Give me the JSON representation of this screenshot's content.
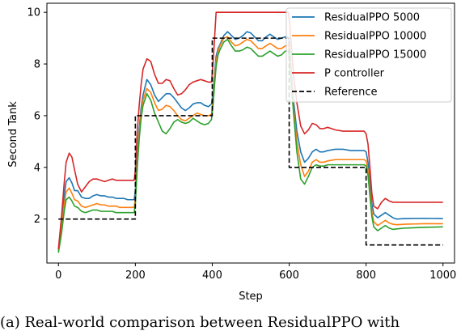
{
  "caption": "(a) Real-world comparison between ResidualPPO with",
  "chart_data": {
    "type": "line",
    "xlabel": "Step",
    "ylabel": "Second Tank",
    "xlim": [
      -30,
      1030
    ],
    "ylim": [
      0.3,
      10.35
    ],
    "xticks": [
      0,
      200,
      400,
      600,
      800,
      1000
    ],
    "yticks": [
      2,
      4,
      6,
      8,
      10
    ],
    "legend_position": "upper-right",
    "series": [
      {
        "name": "ResidualPPO 5000",
        "color": "#1f77b4",
        "x": [
          0,
          8,
          15,
          20,
          28,
          35,
          42,
          50,
          60,
          70,
          80,
          90,
          100,
          110,
          120,
          130,
          140,
          150,
          160,
          170,
          180,
          190,
          197,
          200,
          205,
          210,
          215,
          220,
          230,
          240,
          250,
          260,
          270,
          280,
          290,
          300,
          310,
          320,
          330,
          340,
          350,
          360,
          370,
          380,
          390,
          398,
          402,
          406,
          410,
          415,
          420,
          430,
          440,
          450,
          460,
          470,
          480,
          490,
          500,
          510,
          520,
          530,
          540,
          550,
          560,
          570,
          580,
          590,
          598,
          602,
          606,
          612,
          620,
          630,
          640,
          650,
          660,
          670,
          680,
          690,
          700,
          720,
          740,
          760,
          780,
          795,
          800,
          805,
          810,
          815,
          820,
          830,
          840,
          850,
          860,
          870,
          880,
          900,
          950,
          1000
        ],
        "y": [
          0.8,
          1.8,
          2.9,
          3.45,
          3.6,
          3.4,
          3.1,
          3.1,
          2.85,
          2.8,
          2.8,
          2.9,
          2.95,
          2.9,
          2.9,
          2.85,
          2.85,
          2.8,
          2.8,
          2.8,
          2.75,
          2.75,
          2.75,
          3.1,
          4.5,
          5.5,
          6.3,
          6.8,
          7.4,
          7.2,
          6.8,
          6.55,
          6.7,
          6.85,
          6.85,
          6.7,
          6.5,
          6.3,
          6.2,
          6.3,
          6.45,
          6.5,
          6.5,
          6.4,
          6.35,
          6.45,
          6.9,
          7.6,
          8.3,
          8.6,
          8.75,
          9.1,
          9.25,
          9.1,
          8.95,
          9.0,
          9.1,
          9.25,
          9.2,
          9.05,
          8.9,
          8.9,
          9.05,
          9.15,
          9.05,
          8.95,
          9.0,
          9.05,
          9.05,
          8.5,
          7.6,
          6.5,
          5.4,
          4.6,
          4.2,
          4.35,
          4.6,
          4.7,
          4.6,
          4.6,
          4.65,
          4.7,
          4.7,
          4.65,
          4.65,
          4.65,
          4.6,
          4.2,
          3.4,
          2.6,
          2.2,
          2.05,
          2.15,
          2.25,
          2.15,
          2.05,
          2.0,
          2.02,
          2.03,
          2.02
        ]
      },
      {
        "name": "ResidualPPO 10000",
        "color": "#ff7f0e",
        "x": [
          0,
          8,
          15,
          20,
          28,
          35,
          42,
          50,
          60,
          70,
          80,
          90,
          100,
          110,
          120,
          130,
          140,
          150,
          160,
          170,
          180,
          190,
          197,
          200,
          205,
          210,
          215,
          220,
          230,
          240,
          250,
          260,
          270,
          280,
          290,
          300,
          310,
          320,
          330,
          340,
          350,
          360,
          370,
          380,
          390,
          398,
          402,
          406,
          410,
          415,
          420,
          430,
          440,
          450,
          460,
          470,
          480,
          490,
          500,
          510,
          520,
          530,
          540,
          550,
          560,
          570,
          580,
          590,
          598,
          602,
          606,
          612,
          620,
          630,
          640,
          650,
          660,
          670,
          680,
          690,
          700,
          720,
          740,
          760,
          780,
          795,
          800,
          805,
          810,
          815,
          820,
          830,
          840,
          850,
          860,
          870,
          880,
          900,
          950,
          1000
        ],
        "y": [
          0.75,
          1.6,
          2.55,
          3.05,
          3.2,
          3.0,
          2.75,
          2.7,
          2.5,
          2.45,
          2.5,
          2.55,
          2.6,
          2.55,
          2.55,
          2.5,
          2.5,
          2.5,
          2.45,
          2.45,
          2.45,
          2.45,
          2.45,
          2.8,
          4.2,
          5.3,
          6.1,
          6.6,
          7.05,
          6.9,
          6.5,
          6.2,
          6.25,
          6.4,
          6.35,
          6.2,
          6.0,
          5.85,
          5.8,
          5.9,
          6.0,
          6.1,
          6.05,
          6.0,
          6.0,
          6.05,
          6.6,
          7.4,
          8.1,
          8.5,
          8.7,
          9.0,
          9.05,
          8.85,
          8.7,
          8.75,
          8.85,
          8.95,
          8.9,
          8.75,
          8.6,
          8.6,
          8.7,
          8.8,
          8.7,
          8.6,
          8.6,
          8.7,
          8.7,
          8.2,
          7.3,
          6.2,
          5.0,
          4.1,
          3.65,
          3.85,
          4.2,
          4.3,
          4.2,
          4.2,
          4.25,
          4.3,
          4.3,
          4.3,
          4.3,
          4.3,
          4.25,
          3.9,
          3.1,
          2.3,
          1.9,
          1.75,
          1.85,
          1.95,
          1.85,
          1.8,
          1.78,
          1.8,
          1.82,
          1.82
        ]
      },
      {
        "name": "ResidualPPO 15000",
        "color": "#2ca02c",
        "x": [
          0,
          8,
          15,
          20,
          28,
          35,
          42,
          50,
          60,
          70,
          80,
          90,
          100,
          110,
          120,
          130,
          140,
          150,
          160,
          170,
          180,
          190,
          197,
          200,
          205,
          210,
          215,
          220,
          230,
          240,
          250,
          260,
          270,
          280,
          290,
          300,
          310,
          320,
          330,
          340,
          350,
          360,
          370,
          380,
          390,
          398,
          402,
          406,
          410,
          415,
          420,
          430,
          440,
          450,
          460,
          470,
          480,
          490,
          500,
          510,
          520,
          530,
          540,
          550,
          560,
          570,
          580,
          590,
          598,
          602,
          606,
          612,
          620,
          630,
          640,
          650,
          660,
          670,
          680,
          690,
          700,
          720,
          740,
          760,
          780,
          795,
          800,
          805,
          810,
          815,
          820,
          830,
          840,
          850,
          860,
          870,
          880,
          900,
          950,
          1000
        ],
        "y": [
          0.7,
          1.45,
          2.3,
          2.75,
          2.85,
          2.7,
          2.5,
          2.45,
          2.3,
          2.25,
          2.3,
          2.35,
          2.35,
          2.3,
          2.3,
          2.3,
          2.3,
          2.25,
          2.25,
          2.25,
          2.25,
          2.25,
          2.25,
          2.6,
          4.0,
          5.1,
          5.9,
          6.4,
          6.85,
          6.6,
          6.1,
          5.75,
          5.4,
          5.3,
          5.5,
          5.75,
          5.85,
          5.75,
          5.7,
          5.75,
          5.9,
          5.8,
          5.7,
          5.65,
          5.7,
          5.85,
          6.4,
          7.2,
          7.9,
          8.35,
          8.55,
          8.85,
          8.95,
          8.7,
          8.5,
          8.5,
          8.55,
          8.65,
          8.6,
          8.45,
          8.3,
          8.3,
          8.4,
          8.5,
          8.4,
          8.3,
          8.35,
          8.5,
          8.5,
          8.0,
          7.1,
          6.0,
          4.6,
          3.55,
          3.35,
          3.65,
          4.0,
          4.1,
          4.05,
          4.05,
          4.1,
          4.1,
          4.1,
          4.1,
          4.1,
          4.1,
          4.05,
          3.7,
          2.9,
          2.1,
          1.7,
          1.55,
          1.65,
          1.75,
          1.65,
          1.6,
          1.62,
          1.65,
          1.68,
          1.7
        ]
      },
      {
        "name": "P controller",
        "color": "#d62728",
        "x": [
          0,
          8,
          15,
          20,
          28,
          35,
          42,
          50,
          60,
          70,
          80,
          90,
          100,
          110,
          120,
          130,
          140,
          150,
          160,
          170,
          180,
          190,
          197,
          200,
          205,
          210,
          215,
          220,
          230,
          240,
          250,
          260,
          270,
          280,
          290,
          300,
          310,
          320,
          330,
          340,
          350,
          360,
          370,
          380,
          390,
          398,
          402,
          406,
          410,
          415,
          420,
          430,
          440,
          450,
          460,
          470,
          480,
          490,
          500,
          510,
          520,
          530,
          540,
          550,
          560,
          570,
          580,
          590,
          598,
          602,
          606,
          612,
          620,
          630,
          640,
          650,
          660,
          670,
          680,
          690,
          700,
          720,
          740,
          760,
          780,
          795,
          800,
          805,
          810,
          815,
          820,
          830,
          840,
          850,
          860,
          870,
          880,
          900,
          950,
          1000
        ],
        "y": [
          0.85,
          2.1,
          3.4,
          4.2,
          4.55,
          4.4,
          3.9,
          3.35,
          3.05,
          3.25,
          3.45,
          3.55,
          3.55,
          3.5,
          3.45,
          3.5,
          3.55,
          3.5,
          3.5,
          3.5,
          3.5,
          3.5,
          3.5,
          3.9,
          5.4,
          6.4,
          7.2,
          7.8,
          8.2,
          8.1,
          7.6,
          7.25,
          7.25,
          7.4,
          7.35,
          7.05,
          6.8,
          6.85,
          7.0,
          7.2,
          7.3,
          7.35,
          7.4,
          7.35,
          7.3,
          7.3,
          8.0,
          9.0,
          10.0,
          10.0,
          10.0,
          10.0,
          10.0,
          10.0,
          10.0,
          10.0,
          10.0,
          10.0,
          10.0,
          10.0,
          10.0,
          10.0,
          10.0,
          10.0,
          10.0,
          10.0,
          10.0,
          10.0,
          10.0,
          9.5,
          8.6,
          7.5,
          6.5,
          5.6,
          5.3,
          5.45,
          5.7,
          5.65,
          5.5,
          5.5,
          5.55,
          5.45,
          5.4,
          5.4,
          5.4,
          5.4,
          5.3,
          4.9,
          4.0,
          3.0,
          2.5,
          2.4,
          2.65,
          2.8,
          2.7,
          2.65,
          2.65,
          2.65,
          2.65,
          2.65
        ]
      },
      {
        "name": "Reference",
        "color": "#000000",
        "dashed": true,
        "x": [
          0,
          200,
          200,
          400,
          400,
          600,
          600,
          800,
          800,
          1000
        ],
        "y": [
          2,
          2,
          6,
          6,
          9,
          9,
          4,
          4,
          1,
          1
        ]
      }
    ]
  }
}
